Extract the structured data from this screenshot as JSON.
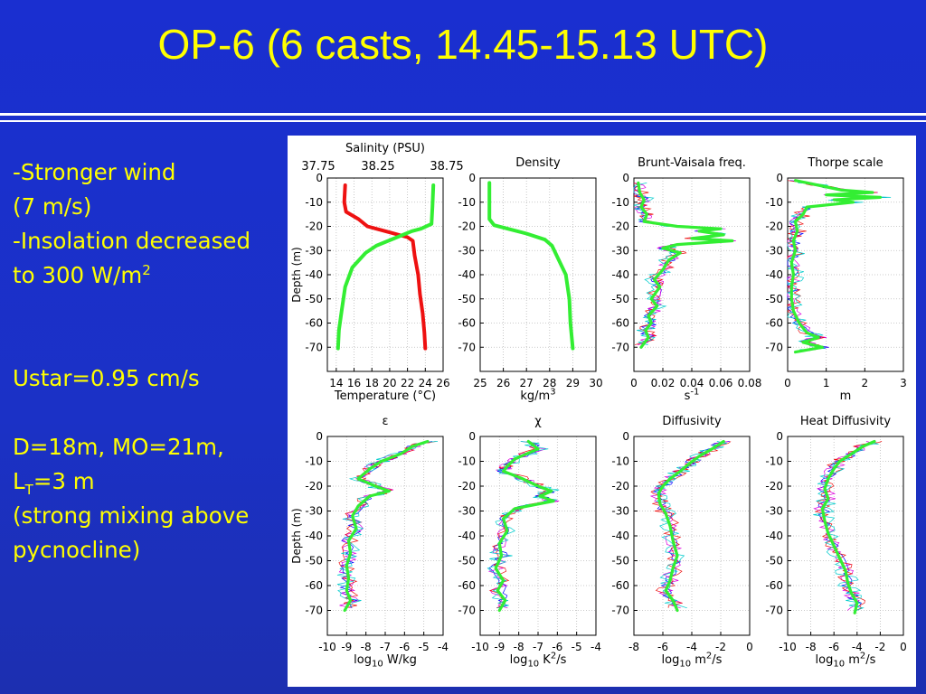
{
  "slide": {
    "title": "OP-6 (6 casts, 14.45-15.13 UTC)"
  },
  "notes": {
    "line1": "-Stronger wind",
    "line2": "(7 m/s)",
    "line3": "-Insolation decreased",
    "line4_base": "to 300 W/m",
    "line4_sup": "2",
    "ustar": "Ustar=0.95 cm/s",
    "dmo": "D=18m, MO=21m,",
    "lt_base": "L",
    "lt_sub": "T",
    "lt_rest": "=3 m",
    "mix1": "(strong mixing above",
    "mix2": "pycnocline)"
  },
  "colors": {
    "background": "#1b31c6",
    "text": "#ffff00",
    "green": "#33ee33",
    "red": "#ee1111",
    "blue": "#0000ff",
    "magenta": "#dd00dd",
    "cyan": "#00cccc"
  },
  "chart_data": [
    {
      "type": "line",
      "title": "Salinity (PSU)",
      "top_axis_ticks": [
        "37.75",
        "38.25",
        "38.75"
      ],
      "xlabel": "Temperature (°C)",
      "ylabel": "Depth (m)",
      "xlim": [
        13,
        26
      ],
      "ylim": [
        -80,
        0
      ],
      "xticks": [
        "14",
        "16",
        "18",
        "20",
        "22",
        "24",
        "26"
      ],
      "yticks": [
        "0",
        "-10",
        "-20",
        "-30",
        "-40",
        "-50",
        "-60",
        "-70"
      ],
      "series": [
        {
          "name": "Temperature",
          "color": "#ee1111",
          "points": [
            [
              15.0,
              -3
            ],
            [
              14.9,
              -10
            ],
            [
              15.1,
              -14
            ],
            [
              16.5,
              -17
            ],
            [
              17.5,
              -20
            ],
            [
              19.5,
              -22
            ],
            [
              22.0,
              -24.5
            ],
            [
              22.6,
              -26
            ],
            [
              22.8,
              -32
            ],
            [
              23.2,
              -40
            ],
            [
              23.4,
              -48
            ],
            [
              23.7,
              -56
            ],
            [
              23.9,
              -64
            ],
            [
              24.0,
              -70.5
            ]
          ]
        },
        {
          "name": "Salinity",
          "color": "#33ee33",
          "points": [
            [
              24.9,
              -3
            ],
            [
              24.8,
              -12
            ],
            [
              24.7,
              -19
            ],
            [
              23.5,
              -21
            ],
            [
              22.5,
              -22
            ],
            [
              20.5,
              -25
            ],
            [
              18.5,
              -28
            ],
            [
              17.3,
              -31
            ],
            [
              15.8,
              -37
            ],
            [
              15.0,
              -45
            ],
            [
              14.6,
              -55
            ],
            [
              14.3,
              -63
            ],
            [
              14.2,
              -70.5
            ]
          ]
        }
      ]
    },
    {
      "type": "line",
      "title": "Density",
      "xlabel_base": "kg/m",
      "xlabel_sup": "3",
      "xlim": [
        25,
        30
      ],
      "ylim": [
        -80,
        0
      ],
      "xticks": [
        "25",
        "26",
        "27",
        "28",
        "29",
        "30"
      ],
      "yticks": [
        "0",
        "-10",
        "-20",
        "-30",
        "-40",
        "-50",
        "-60",
        "-70"
      ],
      "series": [
        {
          "name": "Density",
          "color": "#33ee33",
          "points": [
            [
              25.4,
              -2
            ],
            [
              25.4,
              -10
            ],
            [
              25.4,
              -17
            ],
            [
              25.6,
              -19.5
            ],
            [
              26.2,
              -21
            ],
            [
              27.0,
              -23
            ],
            [
              27.8,
              -25.5
            ],
            [
              28.1,
              -28
            ],
            [
              28.4,
              -34
            ],
            [
              28.7,
              -40
            ],
            [
              28.85,
              -50
            ],
            [
              28.9,
              -60
            ],
            [
              29.0,
              -70.5
            ]
          ]
        }
      ]
    },
    {
      "type": "line",
      "title": "Brunt-Vaisala freq.",
      "xlabel_base": "s",
      "xlabel_sup": "-1",
      "xlim": [
        0,
        0.08
      ],
      "ylim": [
        -80,
        0
      ],
      "xticks": [
        "0",
        "0.02",
        "0.04",
        "0.06",
        "0.08"
      ],
      "yticks": [
        "0",
        "-10",
        "-20",
        "-30",
        "-40",
        "-50",
        "-60",
        "-70"
      ],
      "series": [
        {
          "name": "Mean",
          "color": "#33ee33",
          "points": [
            [
              0.003,
              -2
            ],
            [
              0.004,
              -6
            ],
            [
              0.007,
              -9
            ],
            [
              0.005,
              -12
            ],
            [
              0.009,
              -15
            ],
            [
              0.007,
              -18
            ],
            [
              0.03,
              -20
            ],
            [
              0.06,
              -21
            ],
            [
              0.045,
              -22
            ],
            [
              0.062,
              -23.5
            ],
            [
              0.04,
              -25
            ],
            [
              0.068,
              -26
            ],
            [
              0.03,
              -27.5
            ],
            [
              0.02,
              -29
            ],
            [
              0.032,
              -31
            ],
            [
              0.024,
              -34
            ],
            [
              0.02,
              -38
            ],
            [
              0.014,
              -42
            ],
            [
              0.018,
              -45
            ],
            [
              0.012,
              -50
            ],
            [
              0.016,
              -53
            ],
            [
              0.01,
              -57
            ],
            [
              0.012,
              -60
            ],
            [
              0.008,
              -63
            ],
            [
              0.01,
              -66
            ],
            [
              0.005,
              -70
            ]
          ]
        }
      ]
    },
    {
      "type": "line",
      "title": "Thorpe scale",
      "xlabel": "m",
      "xlim": [
        0,
        3
      ],
      "ylim": [
        -80,
        0
      ],
      "xticks": [
        "0",
        "1",
        "2",
        "3"
      ],
      "yticks": [
        "0",
        "-10",
        "-20",
        "-30",
        "-40",
        "-50",
        "-60",
        "-70"
      ],
      "series": [
        {
          "name": "Mean",
          "color": "#33ee33",
          "points": [
            [
              0.2,
              -1
            ],
            [
              0.8,
              -3
            ],
            [
              1.4,
              -5
            ],
            [
              2.2,
              -6
            ],
            [
              1.0,
              -7
            ],
            [
              2.4,
              -8
            ],
            [
              1.2,
              -9
            ],
            [
              1.7,
              -10
            ],
            [
              0.5,
              -12
            ],
            [
              0.4,
              -15
            ],
            [
              0.2,
              -18
            ],
            [
              0.25,
              -22
            ],
            [
              0.15,
              -26
            ],
            [
              0.2,
              -30
            ],
            [
              0.1,
              -35
            ],
            [
              0.15,
              -40
            ],
            [
              0.1,
              -45
            ],
            [
              0.1,
              -50
            ],
            [
              0.15,
              -55
            ],
            [
              0.3,
              -60
            ],
            [
              0.5,
              -64
            ],
            [
              0.8,
              -66
            ],
            [
              0.4,
              -68
            ],
            [
              0.9,
              -70
            ],
            [
              0.2,
              -72
            ]
          ]
        }
      ]
    },
    {
      "type": "line",
      "title": "ε",
      "xlabel_base": "log",
      "xlabel_sub": "10",
      "xlabel_rest": " W/kg",
      "ylabel": "Depth (m)",
      "xlim": [
        -10,
        -4
      ],
      "ylim": [
        -80,
        0
      ],
      "xticks": [
        "-10",
        "-9",
        "-8",
        "-7",
        "-6",
        "-5",
        "-4"
      ],
      "yticks": [
        "0",
        "-10",
        "-20",
        "-30",
        "-40",
        "-50",
        "-60",
        "-70"
      ],
      "series": [
        {
          "name": "Mean",
          "color": "#33ee33",
          "points": [
            [
              -4.8,
              -2
            ],
            [
              -5.6,
              -4
            ],
            [
              -6.2,
              -7
            ],
            [
              -7.2,
              -10
            ],
            [
              -7.8,
              -13
            ],
            [
              -8.4,
              -17
            ],
            [
              -7.5,
              -20
            ],
            [
              -6.8,
              -22
            ],
            [
              -7.8,
              -24
            ],
            [
              -8.4,
              -28
            ],
            [
              -8.7,
              -32
            ],
            [
              -8.5,
              -37
            ],
            [
              -8.9,
              -42
            ],
            [
              -8.8,
              -47
            ],
            [
              -9.0,
              -52
            ],
            [
              -8.9,
              -57
            ],
            [
              -9.0,
              -62
            ],
            [
              -8.8,
              -66
            ],
            [
              -9.1,
              -70
            ]
          ]
        }
      ]
    },
    {
      "type": "line",
      "title": "χ",
      "xlabel_base": "log",
      "xlabel_sub": "10",
      "xlabel_rest": " K",
      "xlabel_sup": "2",
      "xlabel_tail": "/s",
      "xlim": [
        -10,
        -4
      ],
      "ylim": [
        -80,
        0
      ],
      "xticks": [
        "-10",
        "-9",
        "-8",
        "-7",
        "-6",
        "-5",
        "-4"
      ],
      "yticks": [
        "0",
        "-10",
        "-20",
        "-30",
        "-40",
        "-50",
        "-60",
        "-70"
      ],
      "series": [
        {
          "name": "Mean",
          "color": "#33ee33",
          "points": [
            [
              -7.5,
              -2
            ],
            [
              -7.0,
              -5
            ],
            [
              -8.2,
              -9
            ],
            [
              -8.6,
              -12
            ],
            [
              -8.8,
              -14
            ],
            [
              -7.8,
              -17
            ],
            [
              -7.0,
              -20
            ],
            [
              -6.3,
              -22
            ],
            [
              -6.9,
              -24
            ],
            [
              -6.2,
              -26
            ],
            [
              -8.2,
              -29
            ],
            [
              -8.8,
              -33
            ],
            [
              -8.6,
              -38
            ],
            [
              -9.0,
              -43
            ],
            [
              -8.9,
              -48
            ],
            [
              -9.2,
              -53
            ],
            [
              -8.8,
              -58
            ],
            [
              -9.1,
              -62
            ],
            [
              -8.7,
              -66
            ],
            [
              -9.0,
              -70
            ]
          ]
        }
      ]
    },
    {
      "type": "line",
      "title": "Diffusivity",
      "xlabel_base": "log",
      "xlabel_sub": "10",
      "xlabel_rest": " m",
      "xlabel_sup": "2",
      "xlabel_tail": "/s",
      "xlim": [
        -8,
        0
      ],
      "ylim": [
        -80,
        0
      ],
      "xticks": [
        "-8",
        "-6",
        "-4",
        "-2",
        "0"
      ],
      "yticks": [
        "0",
        "-10",
        "-20",
        "-30",
        "-40",
        "-50",
        "-60",
        "-70"
      ],
      "series": [
        {
          "name": "Mean",
          "color": "#33ee33",
          "points": [
            [
              -1.8,
              -2
            ],
            [
              -2.6,
              -5
            ],
            [
              -3.5,
              -8
            ],
            [
              -4.2,
              -11
            ],
            [
              -4.8,
              -14
            ],
            [
              -5.5,
              -17
            ],
            [
              -6.0,
              -20
            ],
            [
              -6.3,
              -23
            ],
            [
              -6.2,
              -27
            ],
            [
              -5.8,
              -31
            ],
            [
              -5.5,
              -36
            ],
            [
              -5.3,
              -42
            ],
            [
              -5.0,
              -48
            ],
            [
              -5.3,
              -53
            ],
            [
              -5.5,
              -58
            ],
            [
              -5.8,
              -62
            ],
            [
              -5.3,
              -66
            ],
            [
              -5.0,
              -70
            ]
          ]
        }
      ]
    },
    {
      "type": "line",
      "title": "Heat Diffusivity",
      "xlabel_base": "log",
      "xlabel_sub": "10",
      "xlabel_rest": " m",
      "xlabel_sup": "2",
      "xlabel_tail": "/s",
      "xlim": [
        -10,
        0
      ],
      "ylim": [
        -80,
        0
      ],
      "xticks": [
        "-10",
        "-8",
        "-6",
        "-4",
        "-2",
        "0"
      ],
      "yticks": [
        "0",
        "-10",
        "-20",
        "-30",
        "-40",
        "-50",
        "-60",
        "-70"
      ],
      "series": [
        {
          "name": "Mean",
          "color": "#33ee33",
          "points": [
            [
              -2.5,
              -2
            ],
            [
              -3.5,
              -4
            ],
            [
              -4.5,
              -7
            ],
            [
              -5.5,
              -10
            ],
            [
              -6.0,
              -13
            ],
            [
              -6.5,
              -17
            ],
            [
              -6.8,
              -21
            ],
            [
              -6.5,
              -25
            ],
            [
              -7.0,
              -29
            ],
            [
              -6.8,
              -34
            ],
            [
              -6.5,
              -39
            ],
            [
              -6.0,
              -44
            ],
            [
              -5.5,
              -49
            ],
            [
              -5.0,
              -54
            ],
            [
              -4.8,
              -59
            ],
            [
              -4.5,
              -63
            ],
            [
              -4.0,
              -67
            ],
            [
              -4.2,
              -71
            ]
          ]
        }
      ]
    }
  ]
}
